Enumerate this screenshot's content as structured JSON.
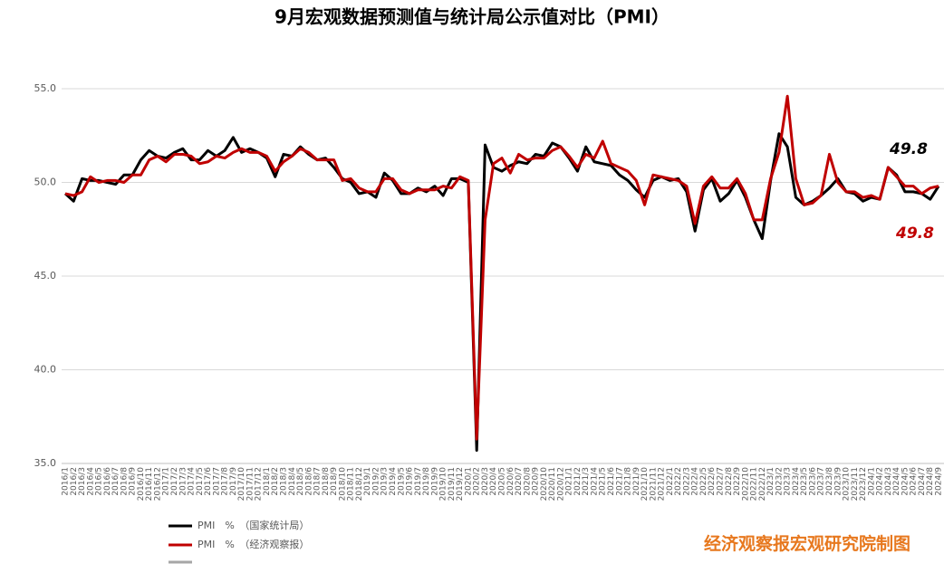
{
  "chart_data": {
    "type": "line",
    "title": "9月宏观数据预测值与统计局公示值对比（PMI）",
    "categories": [
      "2016/1",
      "2016/2",
      "2016/3",
      "2016/4",
      "2016/5",
      "2016/6",
      "2016/7",
      "2016/8",
      "2016/9",
      "2016/10",
      "2016/11",
      "2016/12",
      "2017/1",
      "2017/2",
      "2017/3",
      "2017/4",
      "2017/5",
      "2017/6",
      "2017/7",
      "2017/8",
      "2017/9",
      "2017/10",
      "2017/11",
      "2017/12",
      "2018/1",
      "2018/2",
      "2018/3",
      "2018/4",
      "2018/5",
      "2018/6",
      "2018/7",
      "2018/8",
      "2018/9",
      "2018/10",
      "2018/11",
      "2018/12",
      "2019/1",
      "2019/2",
      "2019/3",
      "2019/4",
      "2019/5",
      "2019/6",
      "2019/7",
      "2019/8",
      "2019/9",
      "2019/10",
      "2019/11",
      "2019/12",
      "2020/1",
      "2020/2",
      "2020/3",
      "2020/4",
      "2020/5",
      "2020/6",
      "2020/7",
      "2020/8",
      "2020/9",
      "2020/10",
      "2020/11",
      "2020/12",
      "2021/1",
      "2021/2",
      "2021/3",
      "2021/4",
      "2021/5",
      "2021/6",
      "2021/7",
      "2021/8",
      "2021/9",
      "2021/10",
      "2021/11",
      "2021/12",
      "2022/1",
      "2022/2",
      "2022/3",
      "2022/4",
      "2022/5",
      "2022/6",
      "2022/7",
      "2022/8",
      "2022/9",
      "2022/10",
      "2022/11",
      "2022/12",
      "2023/1",
      "2023/2",
      "2023/3",
      "2023/4",
      "2023/5",
      "2023/6",
      "2023/7",
      "2023/8",
      "2023/9",
      "2023/10",
      "2023/11",
      "2023/12",
      "2024/1",
      "2024/2",
      "2024/3",
      "2024/4",
      "2024/5",
      "2024/6",
      "2024/7",
      "2024/8",
      "2024/9"
    ],
    "series": [
      {
        "name": "PMI　%　（国家统计局）",
        "color": "#000000",
        "values": [
          49.4,
          49.0,
          50.2,
          50.1,
          50.1,
          50.0,
          49.9,
          50.4,
          50.4,
          51.2,
          51.7,
          51.4,
          51.3,
          51.6,
          51.8,
          51.2,
          51.2,
          51.7,
          51.4,
          51.7,
          52.4,
          51.6,
          51.8,
          51.6,
          51.3,
          50.3,
          51.5,
          51.4,
          51.9,
          51.5,
          51.2,
          51.3,
          50.8,
          50.2,
          50.0,
          49.4,
          49.5,
          49.2,
          50.5,
          50.1,
          49.4,
          49.4,
          49.7,
          49.5,
          49.8,
          49.3,
          50.2,
          50.2,
          50.0,
          35.7,
          52.0,
          50.8,
          50.6,
          50.9,
          51.1,
          51.0,
          51.5,
          51.4,
          52.1,
          51.9,
          51.3,
          50.6,
          51.9,
          51.1,
          51.0,
          50.9,
          50.4,
          50.1,
          49.6,
          49.2,
          50.1,
          50.3,
          50.1,
          50.2,
          49.5,
          47.4,
          49.6,
          50.2,
          49.0,
          49.4,
          50.1,
          49.2,
          48.0,
          47.0,
          50.1,
          52.6,
          51.9,
          49.2,
          48.8,
          49.0,
          49.3,
          49.7,
          50.2,
          49.5,
          49.4,
          49.0,
          49.2,
          49.1,
          50.8,
          50.4,
          49.5,
          49.5,
          49.4,
          49.1,
          49.8
        ]
      },
      {
        "name": "PMI　%　（经济观察报）",
        "color": "#c00000",
        "values": [
          49.4,
          49.3,
          49.5,
          50.3,
          50.0,
          50.1,
          50.1,
          50.0,
          50.4,
          50.4,
          51.2,
          51.4,
          51.1,
          51.5,
          51.5,
          51.4,
          51.0,
          51.1,
          51.4,
          51.3,
          51.6,
          51.8,
          51.6,
          51.6,
          51.4,
          50.6,
          51.1,
          51.4,
          51.8,
          51.6,
          51.2,
          51.2,
          51.2,
          50.1,
          50.2,
          49.7,
          49.5,
          49.5,
          50.2,
          50.2,
          49.6,
          49.4,
          49.6,
          49.6,
          49.6,
          49.8,
          49.7,
          50.3,
          50.1,
          36.3,
          48.0,
          51.0,
          51.3,
          50.5,
          51.5,
          51.2,
          51.3,
          51.3,
          51.7,
          51.9,
          51.4,
          50.8,
          51.5,
          51.3,
          52.2,
          51.0,
          50.8,
          50.6,
          50.1,
          48.8,
          50.4,
          50.3,
          50.2,
          50.1,
          49.8,
          47.8,
          49.8,
          50.3,
          49.7,
          49.7,
          50.2,
          49.4,
          48.0,
          48.0,
          50.2,
          51.6,
          54.6,
          50.2,
          48.8,
          48.9,
          49.3,
          51.5,
          50.0,
          49.5,
          49.5,
          49.2,
          49.3,
          49.1,
          50.8,
          50.3,
          49.8,
          49.8,
          49.4,
          49.7,
          49.8
        ]
      }
    ],
    "ylim": [
      35,
      55
    ],
    "yticks": [
      {
        "value": 35,
        "label": "35.0"
      },
      {
        "value": 40,
        "label": "40.0"
      },
      {
        "value": 45,
        "label": "45.0"
      },
      {
        "value": 50,
        "label": "50.0"
      },
      {
        "value": 55,
        "label": "55.0"
      }
    ],
    "grid": true,
    "annotations": [
      {
        "text": "49.8",
        "color": "#000000"
      },
      {
        "text": "49.8",
        "color": "#c00000"
      }
    ],
    "source": "经济观察报宏观研究院制图"
  }
}
